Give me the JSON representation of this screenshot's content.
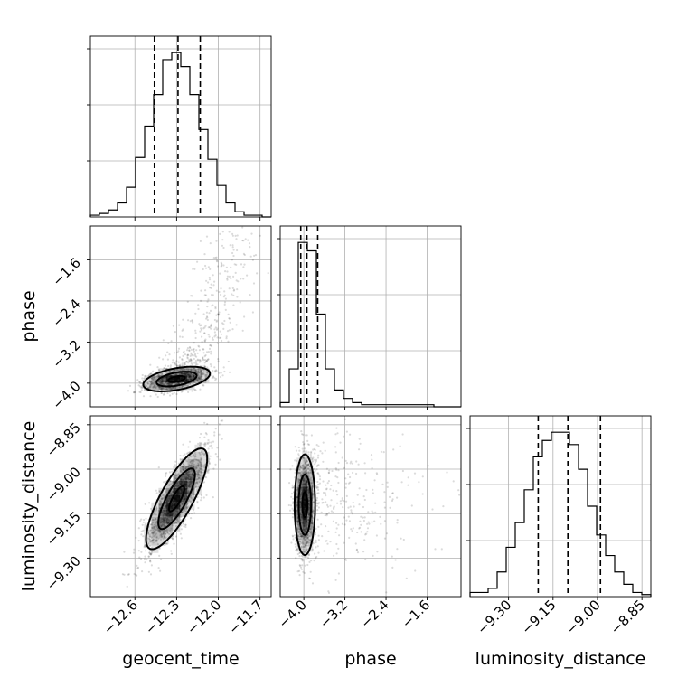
{
  "chart_data": {
    "type": "corner",
    "parameters": [
      "geocent_time",
      "phase",
      "luminosity_distance"
    ],
    "axes": {
      "geocent_time": {
        "range": [
          -12.92,
          -11.62
        ],
        "ticks": [
          -12.6,
          -12.3,
          -12.0,
          -11.7
        ],
        "tick_labels": [
          "−12.6",
          "−12.3",
          "−12.0",
          "−11.7"
        ]
      },
      "phase": {
        "range": [
          -4.46,
          -0.94
        ],
        "ticks": [
          -4.0,
          -3.2,
          -2.4,
          -1.6
        ],
        "tick_labels": [
          "−4.0",
          "−3.2",
          "−2.4",
          "−1.6"
        ]
      },
      "luminosity_distance": {
        "range": [
          -9.43,
          -8.82
        ],
        "ticks": [
          -9.3,
          -9.15,
          -9.0,
          -8.85
        ],
        "tick_labels": [
          "−9.30",
          "−9.15",
          "−9.00",
          "−8.85"
        ]
      }
    },
    "histograms": [
      {
        "param": "geocent_time",
        "edges_range": [
          -12.92,
          -11.62
        ],
        "counts": [
          1,
          2,
          4,
          8,
          17,
          34,
          52,
          70,
          90,
          94,
          86,
          70,
          50,
          33,
          18,
          8,
          3,
          1,
          1,
          0
        ],
        "quantiles": [
          -12.46,
          -12.29,
          -12.13
        ]
      },
      {
        "param": "phase",
        "edges_range": [
          -4.46,
          -0.94
        ],
        "counts": [
          2,
          18,
          78,
          74,
          44,
          18,
          8,
          4,
          2,
          1,
          1,
          1,
          1,
          1,
          1,
          1,
          1,
          0,
          0,
          0
        ],
        "quantiles": [
          -4.06,
          -3.94,
          -3.73
        ]
      },
      {
        "param": "luminosity_distance",
        "edges_range": [
          -9.43,
          -8.82
        ],
        "counts": [
          2,
          2,
          4,
          12,
          24,
          36,
          52,
          68,
          76,
          80,
          80,
          74,
          62,
          44,
          30,
          20,
          12,
          6,
          2,
          1
        ],
        "quantiles": [
          -9.2,
          -9.1,
          -8.99
        ]
      }
    ],
    "scatter_2d": [
      {
        "x": "geocent_time",
        "y": "phase",
        "center": [
          -12.3,
          -3.92
        ],
        "correlation": 0.45
      },
      {
        "x": "geocent_time",
        "y": "luminosity_distance",
        "center": [
          -12.3,
          -9.1
        ],
        "correlation": 0.8
      },
      {
        "x": "phase",
        "y": "luminosity_distance",
        "center": [
          -3.98,
          -9.12
        ],
        "correlation": 0.0
      }
    ],
    "grid": true
  }
}
